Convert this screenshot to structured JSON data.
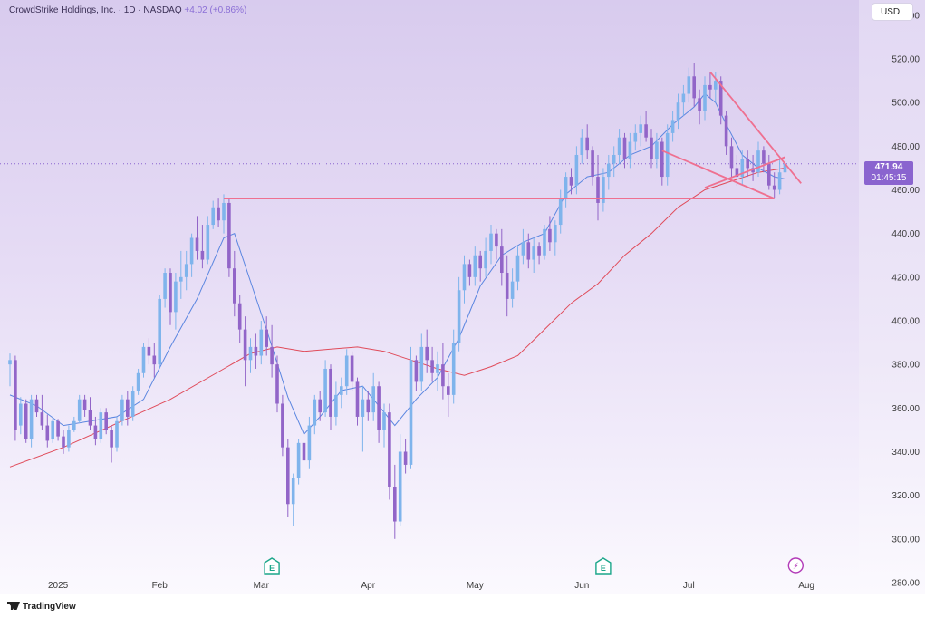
{
  "header": {
    "title": "CrowdStrike Holdings, Inc. · 1D · NASDAQ",
    "change": "+4.02 (+0.86%)"
  },
  "currency": "USD",
  "last_price": {
    "price": "471.94",
    "countdown": "01:45:15"
  },
  "footer": {
    "brand": "TradingView"
  },
  "colors": {
    "up_candle": "#7fb4ec",
    "down_candle": "#9265c8",
    "ma_short": "#5b86e0",
    "ma_long": "#e04b5a",
    "drawing": "#ef7090",
    "price_tag": "#8a64cf"
  },
  "chart_data": {
    "type": "candlestick",
    "ylim": [
      275,
      547
    ],
    "y_ticks": [
      280,
      300,
      320,
      340,
      360,
      380,
      400,
      420,
      440,
      460,
      480,
      500,
      520,
      540
    ],
    "y_tick_labels": [
      "280.00",
      "300.00",
      "320.00",
      "340.00",
      "360.00",
      "380.00",
      "400.00",
      "420.00",
      "440.00",
      "460.00",
      "480.00",
      "500.00",
      "520.00",
      "540.00"
    ],
    "x_labels": [
      {
        "label": "2025",
        "index": 9
      },
      {
        "label": "Feb",
        "index": 28
      },
      {
        "label": "Mar",
        "index": 47
      },
      {
        "label": "Apr",
        "index": 67
      },
      {
        "label": "May",
        "index": 87
      },
      {
        "label": "Jun",
        "index": 107
      },
      {
        "label": "Jul",
        "index": 127
      },
      {
        "label": "Aug",
        "index": 149
      }
    ],
    "earnings_markers": [
      {
        "index": 49,
        "label": "E"
      },
      {
        "index": 111,
        "label": "E"
      }
    ],
    "event_markers": [
      {
        "index": 147,
        "symbol": "⚡"
      }
    ],
    "last_price": 471.94,
    "candles": [
      [
        0,
        380,
        385,
        370,
        382
      ],
      [
        1,
        382,
        384,
        345,
        350
      ],
      [
        2,
        352,
        365,
        348,
        362
      ],
      [
        3,
        362,
        364,
        344,
        346
      ],
      [
        4,
        346,
        366,
        342,
        364
      ],
      [
        5,
        364,
        366,
        356,
        358
      ],
      [
        6,
        358,
        366,
        350,
        352
      ],
      [
        7,
        352,
        357,
        342,
        345
      ],
      [
        8,
        346,
        356,
        344,
        354
      ],
      [
        9,
        354,
        355,
        345,
        347
      ],
      [
        10,
        347,
        350,
        339,
        342
      ],
      [
        11,
        342,
        352,
        340,
        350
      ],
      [
        12,
        350,
        356,
        349,
        354
      ],
      [
        13,
        354,
        366,
        353,
        364
      ],
      [
        14,
        364,
        366,
        356,
        359
      ],
      [
        15,
        359,
        365,
        350,
        352
      ],
      [
        16,
        352,
        356,
        343,
        346
      ],
      [
        17,
        346,
        360,
        344,
        358
      ],
      [
        18,
        358,
        360,
        348,
        350
      ],
      [
        19,
        350,
        352,
        335,
        342
      ],
      [
        20,
        342,
        356,
        340,
        354
      ],
      [
        21,
        354,
        366,
        352,
        364
      ],
      [
        22,
        364,
        368,
        352,
        356
      ],
      [
        23,
        356,
        370,
        354,
        368
      ],
      [
        24,
        368,
        378,
        366,
        376
      ],
      [
        25,
        376,
        390,
        374,
        388
      ],
      [
        26,
        388,
        392,
        380,
        384
      ],
      [
        27,
        384,
        390,
        374,
        380
      ],
      [
        28,
        380,
        412,
        378,
        410
      ],
      [
        29,
        410,
        424,
        406,
        422
      ],
      [
        30,
        422,
        424,
        398,
        404
      ],
      [
        31,
        404,
        422,
        396,
        418
      ],
      [
        32,
        418,
        432,
        410,
        420
      ],
      [
        33,
        420,
        432,
        414,
        426
      ],
      [
        34,
        426,
        440,
        420,
        438
      ],
      [
        35,
        438,
        448,
        428,
        432
      ],
      [
        36,
        432,
        444,
        424,
        428
      ],
      [
        37,
        428,
        448,
        426,
        444
      ],
      [
        38,
        444,
        455,
        442,
        452
      ],
      [
        39,
        452,
        456,
        443,
        446
      ],
      [
        40,
        446,
        458,
        440,
        454
      ],
      [
        41,
        454,
        456,
        420,
        424
      ],
      [
        42,
        424,
        432,
        402,
        408
      ],
      [
        43,
        408,
        412,
        390,
        396
      ],
      [
        44,
        396,
        402,
        370,
        382
      ],
      [
        45,
        382,
        392,
        376,
        388
      ],
      [
        46,
        388,
        394,
        378,
        384
      ],
      [
        47,
        384,
        400,
        380,
        396
      ],
      [
        48,
        396,
        402,
        384,
        388
      ],
      [
        49,
        388,
        398,
        374,
        380
      ],
      [
        50,
        380,
        384,
        358,
        362
      ],
      [
        51,
        362,
        366,
        338,
        342
      ],
      [
        52,
        342,
        346,
        310,
        316
      ],
      [
        53,
        316,
        330,
        306,
        328
      ],
      [
        54,
        328,
        346,
        325,
        344
      ],
      [
        55,
        344,
        346,
        334,
        336
      ],
      [
        56,
        336,
        356,
        332,
        352
      ],
      [
        57,
        352,
        366,
        348,
        364
      ],
      [
        58,
        364,
        368,
        354,
        358
      ],
      [
        59,
        358,
        382,
        356,
        378
      ],
      [
        60,
        378,
        380,
        350,
        356
      ],
      [
        61,
        356,
        372,
        352,
        366
      ],
      [
        62,
        366,
        374,
        360,
        370
      ],
      [
        63,
        370,
        387,
        366,
        384
      ],
      [
        64,
        384,
        386,
        368,
        372
      ],
      [
        65,
        372,
        374,
        352,
        356
      ],
      [
        66,
        356,
        370,
        340,
        364
      ],
      [
        67,
        364,
        368,
        354,
        358
      ],
      [
        68,
        358,
        376,
        354,
        370
      ],
      [
        69,
        370,
        372,
        344,
        350
      ],
      [
        70,
        350,
        362,
        342,
        358
      ],
      [
        71,
        358,
        362,
        318,
        324
      ],
      [
        72,
        324,
        334,
        300,
        308
      ],
      [
        73,
        308,
        348,
        306,
        340
      ],
      [
        74,
        340,
        346,
        330,
        334
      ],
      [
        75,
        334,
        388,
        332,
        382
      ],
      [
        76,
        382,
        384,
        368,
        372
      ],
      [
        77,
        372,
        394,
        368,
        388
      ],
      [
        78,
        388,
        396,
        376,
        382
      ],
      [
        79,
        382,
        388,
        372,
        376
      ],
      [
        80,
        376,
        386,
        368,
        380
      ],
      [
        81,
        380,
        390,
        364,
        370
      ],
      [
        82,
        370,
        376,
        356,
        366
      ],
      [
        83,
        366,
        396,
        362,
        390
      ],
      [
        84,
        390,
        420,
        386,
        414
      ],
      [
        85,
        414,
        430,
        408,
        426
      ],
      [
        86,
        426,
        428,
        416,
        420
      ],
      [
        87,
        420,
        434,
        416,
        430
      ],
      [
        88,
        430,
        432,
        418,
        424
      ],
      [
        89,
        424,
        438,
        420,
        432
      ],
      [
        90,
        432,
        444,
        426,
        440
      ],
      [
        91,
        440,
        442,
        428,
        434
      ],
      [
        92,
        434,
        442,
        416,
        422
      ],
      [
        93,
        422,
        430,
        402,
        410
      ],
      [
        94,
        410,
        424,
        406,
        418
      ],
      [
        95,
        418,
        434,
        414,
        430
      ],
      [
        96,
        430,
        442,
        426,
        436
      ],
      [
        97,
        436,
        440,
        424,
        428
      ],
      [
        98,
        428,
        438,
        422,
        434
      ],
      [
        99,
        434,
        436,
        426,
        430
      ],
      [
        100,
        430,
        444,
        428,
        442
      ],
      [
        101,
        442,
        448,
        432,
        436
      ],
      [
        102,
        436,
        446,
        430,
        444
      ],
      [
        103,
        444,
        460,
        440,
        456
      ],
      [
        104,
        456,
        468,
        452,
        466
      ],
      [
        105,
        466,
        470,
        458,
        462
      ],
      [
        106,
        462,
        480,
        458,
        476
      ],
      [
        107,
        476,
        488,
        472,
        484
      ],
      [
        108,
        484,
        490,
        474,
        478
      ],
      [
        109,
        478,
        480,
        462,
        466
      ],
      [
        110,
        466,
        476,
        446,
        454
      ],
      [
        111,
        454,
        470,
        450,
        466
      ],
      [
        112,
        466,
        476,
        460,
        472
      ],
      [
        113,
        472,
        480,
        466,
        476
      ],
      [
        114,
        476,
        488,
        472,
        484
      ],
      [
        115,
        484,
        486,
        470,
        474
      ],
      [
        116,
        474,
        486,
        470,
        482
      ],
      [
        117,
        482,
        490,
        478,
        486
      ],
      [
        118,
        486,
        494,
        480,
        490
      ],
      [
        119,
        490,
        496,
        482,
        484
      ],
      [
        120,
        484,
        488,
        470,
        474
      ],
      [
        121,
        474,
        486,
        470,
        482
      ],
      [
        122,
        482,
        484,
        462,
        466
      ],
      [
        123,
        466,
        490,
        462,
        486
      ],
      [
        124,
        486,
        496,
        482,
        492
      ],
      [
        125,
        492,
        504,
        488,
        500
      ],
      [
        126,
        500,
        508,
        494,
        504
      ],
      [
        127,
        504,
        516,
        500,
        512
      ],
      [
        128,
        512,
        518,
        498,
        502
      ],
      [
        129,
        502,
        506,
        490,
        496
      ],
      [
        130,
        496,
        512,
        492,
        508
      ],
      [
        131,
        508,
        514,
        502,
        506
      ],
      [
        132,
        506,
        514,
        500,
        510
      ],
      [
        133,
        510,
        512,
        490,
        494
      ],
      [
        134,
        494,
        496,
        476,
        480
      ],
      [
        135,
        480,
        484,
        466,
        470
      ],
      [
        136,
        470,
        476,
        462,
        466
      ],
      [
        137,
        466,
        478,
        462,
        474
      ],
      [
        138,
        474,
        478,
        466,
        470
      ],
      [
        139,
        470,
        476,
        464,
        468
      ],
      [
        140,
        468,
        482,
        466,
        478
      ],
      [
        141,
        478,
        480,
        468,
        472
      ],
      [
        142,
        472,
        476,
        460,
        462
      ],
      [
        143,
        462,
        468,
        456,
        460
      ],
      [
        144,
        460,
        474,
        458,
        468
      ],
      [
        145,
        468,
        474,
        466,
        471.94
      ]
    ],
    "ma_short": [
      [
        0,
        366
      ],
      [
        5,
        361
      ],
      [
        10,
        352
      ],
      [
        15,
        354
      ],
      [
        20,
        356
      ],
      [
        25,
        364
      ],
      [
        30,
        388
      ],
      [
        35,
        410
      ],
      [
        40,
        438
      ],
      [
        42,
        440
      ],
      [
        45,
        418
      ],
      [
        48,
        396
      ],
      [
        52,
        365
      ],
      [
        55,
        348
      ],
      [
        58,
        356
      ],
      [
        62,
        368
      ],
      [
        66,
        370
      ],
      [
        70,
        358
      ],
      [
        72,
        352
      ],
      [
        76,
        364
      ],
      [
        80,
        374
      ],
      [
        84,
        392
      ],
      [
        88,
        416
      ],
      [
        92,
        430
      ],
      [
        96,
        436
      ],
      [
        100,
        440
      ],
      [
        104,
        458
      ],
      [
        108,
        466
      ],
      [
        112,
        468
      ],
      [
        116,
        476
      ],
      [
        120,
        480
      ],
      [
        124,
        490
      ],
      [
        128,
        498
      ],
      [
        130,
        504
      ],
      [
        132,
        500
      ],
      [
        134,
        490
      ],
      [
        137,
        476
      ],
      [
        140,
        470
      ],
      [
        143,
        466
      ],
      [
        145,
        465
      ]
    ],
    "ma_long": [
      [
        0,
        333
      ],
      [
        10,
        342
      ],
      [
        20,
        353
      ],
      [
        30,
        364
      ],
      [
        40,
        378
      ],
      [
        45,
        385
      ],
      [
        50,
        388
      ],
      [
        55,
        386
      ],
      [
        60,
        387
      ],
      [
        65,
        388
      ],
      [
        70,
        386
      ],
      [
        75,
        382
      ],
      [
        80,
        378
      ],
      [
        85,
        375
      ],
      [
        90,
        379
      ],
      [
        95,
        384
      ],
      [
        100,
        396
      ],
      [
        105,
        408
      ],
      [
        110,
        417
      ],
      [
        115,
        430
      ],
      [
        120,
        440
      ],
      [
        125,
        452
      ],
      [
        130,
        460
      ],
      [
        135,
        464
      ],
      [
        140,
        468
      ],
      [
        145,
        470
      ]
    ],
    "drawings": [
      [
        [
          40,
          456
        ],
        [
          143,
          456
        ]
      ],
      [
        [
          131,
          514
        ],
        [
          148,
          463
        ]
      ],
      [
        [
          122,
          478
        ],
        [
          143,
          456
        ]
      ],
      [
        [
          130,
          461
        ],
        [
          145,
          475
        ]
      ]
    ],
    "x_count": 160
  }
}
